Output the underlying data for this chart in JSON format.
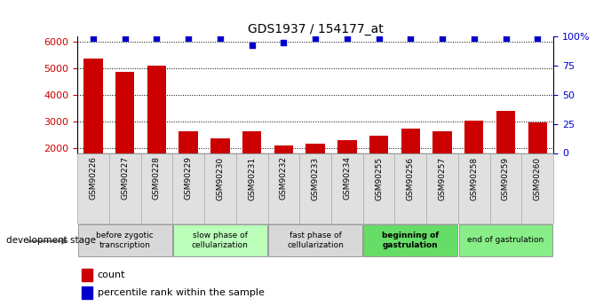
{
  "title": "GDS1937 / 154177_at",
  "samples": [
    "GSM90226",
    "GSM90227",
    "GSM90228",
    "GSM90229",
    "GSM90230",
    "GSM90231",
    "GSM90232",
    "GSM90233",
    "GSM90234",
    "GSM90255",
    "GSM90256",
    "GSM90257",
    "GSM90258",
    "GSM90259",
    "GSM90260"
  ],
  "counts": [
    5370,
    4880,
    5120,
    2620,
    2360,
    2620,
    2080,
    2160,
    2280,
    2460,
    2710,
    2620,
    3040,
    3410,
    2960
  ],
  "percentile_ranks": [
    99,
    99,
    99,
    99,
    99,
    93,
    95,
    99,
    99,
    99,
    99,
    99,
    99,
    99,
    99
  ],
  "ylim_left": [
    1800,
    6200
  ],
  "ylim_right": [
    0,
    100
  ],
  "yticks_left": [
    2000,
    3000,
    4000,
    5000,
    6000
  ],
  "yticks_right": [
    0,
    25,
    50,
    75,
    100
  ],
  "yright_labels": [
    "0",
    "25",
    "50",
    "75",
    "100%"
  ],
  "bar_color": "#cc0000",
  "dot_color": "#0000cc",
  "bar_width": 0.6,
  "stages": [
    {
      "label": "before zygotic\ntranscription",
      "samples": [
        "GSM90226",
        "GSM90227",
        "GSM90228"
      ],
      "color": "#d8d8d8",
      "bold": false
    },
    {
      "label": "slow phase of\ncellularization",
      "samples": [
        "GSM90229",
        "GSM90230",
        "GSM90231"
      ],
      "color": "#bbffbb",
      "bold": false
    },
    {
      "label": "fast phase of\ncellularization",
      "samples": [
        "GSM90232",
        "GSM90233",
        "GSM90234"
      ],
      "color": "#d8d8d8",
      "bold": false
    },
    {
      "label": "beginning of\ngastrulation",
      "samples": [
        "GSM90255",
        "GSM90256",
        "GSM90257"
      ],
      "color": "#66dd66",
      "bold": true
    },
    {
      "label": "end of gastrulation",
      "samples": [
        "GSM90258",
        "GSM90259",
        "GSM90260"
      ],
      "color": "#88ee88",
      "bold": false
    }
  ],
  "legend_count_label": "count",
  "legend_pct_label": "percentile rank within the sample",
  "dev_stage_label": "development stage",
  "background_color": "#ffffff"
}
